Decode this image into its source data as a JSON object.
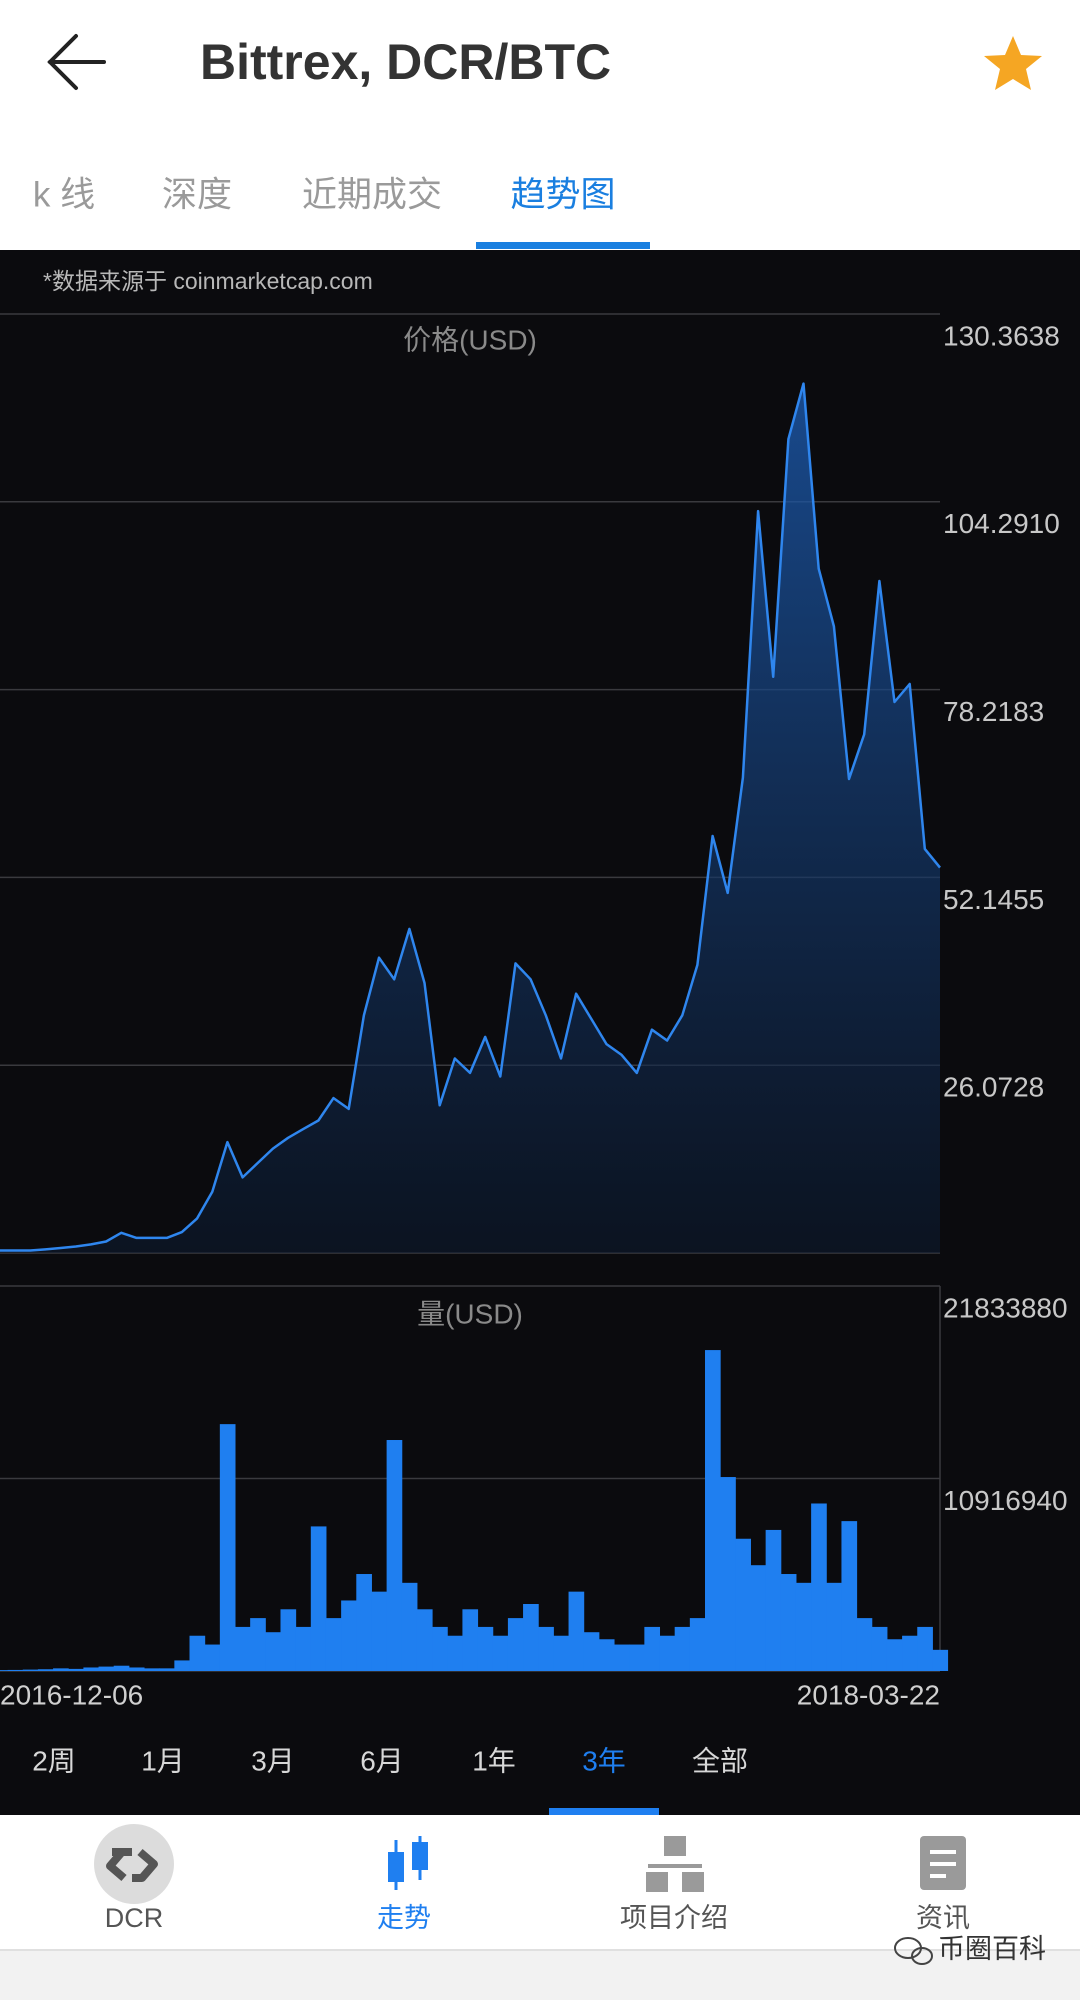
{
  "header": {
    "title": "Bittrex, DCR/BTC"
  },
  "tabs": [
    "k 线",
    "深度",
    "近期成交",
    "趋势图"
  ],
  "active_tab": 3,
  "source_note": "*数据来源于 coinmarketcap.com",
  "chart_data": [
    {
      "type": "area",
      "title": "价格(USD)",
      "color": "#2f86ee",
      "grid": true,
      "ylim": [
        0,
        130.3638
      ],
      "yticks": [
        130.3638,
        {
          "value": 104.291,
          "label": "104.2910"
        },
        78.2183,
        52.1455,
        26.0728
      ],
      "values": [
        0.35,
        0.35,
        0.35,
        0.5,
        0.7,
        0.9,
        1.2,
        1.6,
        2.8,
        2.1,
        2.1,
        2.1,
        2.9,
        4.8,
        8.5,
        15.4,
        10.5,
        12.5,
        14.5,
        16.0,
        17.2,
        18.4,
        21.5,
        20.0,
        33.0,
        41.0,
        38.0,
        45.0,
        37.5,
        20.5,
        27.0,
        25.0,
        30.0,
        24.5,
        40.2,
        38.0,
        33.0,
        27.0,
        36.0,
        32.5,
        29.0,
        27.5,
        25.0,
        31.0,
        29.5,
        33.0,
        40.0,
        57.9,
        50.0,
        66.0,
        103.0,
        80.0,
        113.0,
        120.7,
        95.0,
        87.0,
        65.8,
        72.0,
        93.3,
        76.5,
        79.0,
        56.1,
        53.5
      ]
    },
    {
      "type": "bar",
      "title": "量(USD)",
      "color": "#1f7ff0",
      "grid": true,
      "ylim": [
        0,
        21833880
      ],
      "yticks": [
        21833880,
        10916940
      ],
      "categories": [
        "2016-12-06",
        null,
        null,
        null,
        null,
        null,
        null,
        null,
        null,
        null,
        null,
        null,
        null,
        null,
        null,
        null,
        null,
        null,
        null,
        null,
        null,
        null,
        null,
        null,
        null,
        null,
        null,
        null,
        null,
        null,
        null,
        null,
        null,
        null,
        null,
        null,
        null,
        null,
        null,
        null,
        null,
        null,
        null,
        null,
        null,
        null,
        null,
        null,
        null,
        null,
        null,
        null,
        null,
        null,
        null,
        null,
        null,
        null,
        null,
        null,
        null,
        null,
        "2018-03-22"
      ],
      "values": [
        50000,
        60000,
        80000,
        100000,
        150000,
        120000,
        200000,
        250000,
        300000,
        200000,
        150000,
        150000,
        600000,
        2000000,
        1500000,
        14000000,
        2500000,
        3000000,
        2200000,
        3500000,
        2500000,
        8200000,
        3000000,
        4000000,
        5500000,
        4500000,
        13100000,
        5000000,
        3500000,
        2500000,
        2000000,
        3500000,
        2500000,
        2000000,
        3000000,
        3800000,
        2500000,
        2000000,
        4500000,
        2200000,
        1800000,
        1500000,
        1500000,
        2500000,
        2000000,
        2500000,
        3000000,
        18200000,
        11000000,
        7500000,
        6000000,
        8000000,
        5500000,
        5000000,
        9500000,
        5000000,
        8500000,
        3000000,
        2500000,
        1800000,
        2000000,
        2500000,
        1200000
      ]
    }
  ],
  "ranges": [
    "2周",
    "1月",
    "3月",
    "6月",
    "1年",
    "3年",
    "全部"
  ],
  "active_range": 5,
  "nav": [
    "DCR",
    "走势",
    "项目介绍",
    "资讯"
  ],
  "active_nav": 1,
  "watermark": "币圈百科"
}
